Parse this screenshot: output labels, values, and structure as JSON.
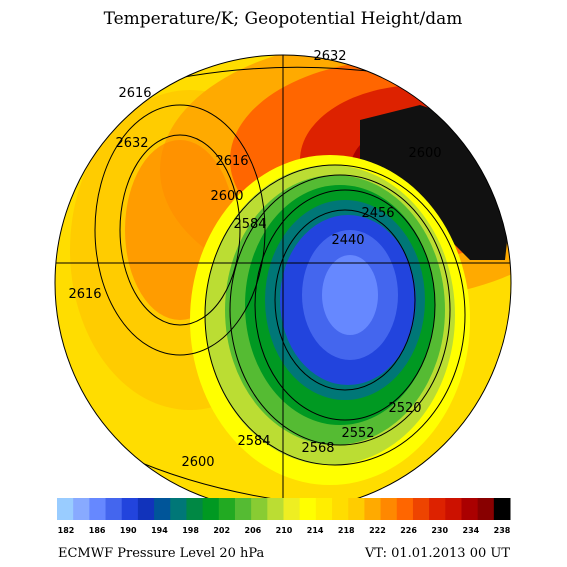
{
  "header": {
    "title": "Temperature/K; Geopotential Height/dam"
  },
  "map": {
    "contour_labels": [
      2632,
      2616,
      2632,
      2600,
      2616,
      2616,
      2600,
      2584,
      2456,
      2440,
      2600,
      2584,
      2568,
      2552,
      2520
    ]
  },
  "colorbar": {
    "colors": [
      "#99ccff",
      "#88aaff",
      "#6688ff",
      "#4466ee",
      "#2244dd",
      "#1133bb",
      "#005599",
      "#007777",
      "#008844",
      "#009922",
      "#22aa22",
      "#55bb33",
      "#88cc33",
      "#bbdd33",
      "#eeee22",
      "#ffff00",
      "#ffee00",
      "#ffdd00",
      "#ffcc00",
      "#ffaa00",
      "#ff8800",
      "#ff6600",
      "#ee4400",
      "#dd2200",
      "#cc1100",
      "#aa0000",
      "#880000",
      "#000000"
    ],
    "labels": [
      182,
      186,
      190,
      194,
      198,
      202,
      206,
      210,
      214,
      218,
      222,
      226,
      230,
      234,
      238
    ]
  },
  "footer": {
    "left": "ECMWF Pressure Level 20 hPa",
    "right": "VT: 01.01.2013 00 UT"
  }
}
